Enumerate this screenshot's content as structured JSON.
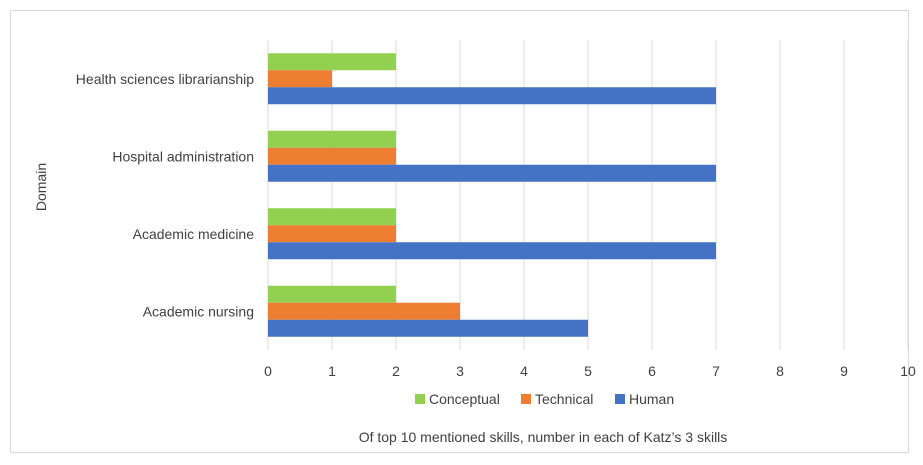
{
  "chart_data": {
    "type": "bar",
    "orientation": "horizontal",
    "categories": [
      "Academic nursing",
      "Academic medicine",
      "Hospital administration",
      "Health sciences librarianship"
    ],
    "series": [
      {
        "name": "Human",
        "color": "#4472C4",
        "values": [
          5,
          7,
          7,
          7
        ]
      },
      {
        "name": "Technical",
        "color": "#ED7D31",
        "values": [
          3,
          2,
          2,
          1
        ]
      },
      {
        "name": "Conceptual",
        "color": "#92D050",
        "values": [
          2,
          2,
          2,
          2
        ]
      }
    ],
    "legend_order": [
      "Conceptual",
      "Technical",
      "Human"
    ],
    "xlim": [
      0,
      10
    ],
    "xticks": [
      "0",
      "1",
      "2",
      "3",
      "4",
      "5",
      "6",
      "7",
      "8",
      "9",
      "10"
    ],
    "xlabel": "Of top 10 mentioned skills, number in each of Katz’s 3 skills",
    "ylabel": "Domain",
    "grid": "vertical",
    "legend_position": "bottom"
  }
}
